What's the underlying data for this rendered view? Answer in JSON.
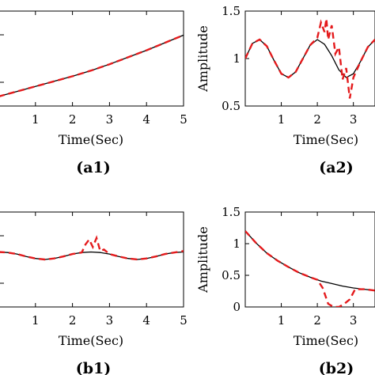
{
  "chart_data": [
    {
      "id": "a1",
      "type": "line",
      "panel_label": "(a1)",
      "xlabel": "Time(Sec)",
      "ylabel": "",
      "xlim": [
        0,
        5
      ],
      "ylim": [
        0,
        1.5
      ],
      "xticks": [
        1,
        2,
        3,
        4,
        5
      ],
      "yticks": [],
      "series": [
        {
          "style": "solid",
          "color": "#000000",
          "x": [
            0,
            0.5,
            1,
            1.5,
            2,
            2.5,
            3,
            3.5,
            4,
            4.5,
            5
          ],
          "y": [
            0.15,
            0.23,
            0.31,
            0.39,
            0.47,
            0.56,
            0.66,
            0.77,
            0.88,
            1.0,
            1.12
          ]
        },
        {
          "style": "dashed",
          "color": "#e41a1c",
          "x": [
            0,
            0.5,
            1,
            1.5,
            2,
            2.5,
            3,
            3.5,
            4,
            4.5,
            5
          ],
          "y": [
            0.15,
            0.23,
            0.31,
            0.39,
            0.47,
            0.56,
            0.66,
            0.77,
            0.88,
            1.0,
            1.12
          ]
        }
      ]
    },
    {
      "id": "a2",
      "type": "line",
      "panel_label": "(a2)",
      "xlabel": "Time(Sec)",
      "ylabel": "Amplitude",
      "xlim": [
        0,
        3.6
      ],
      "ylim": [
        0.5,
        1.5
      ],
      "xticks": [
        1,
        2,
        3
      ],
      "yticks": [
        0.5,
        1,
        1.5
      ],
      "series": [
        {
          "style": "solid",
          "color": "#000000",
          "x": [
            0,
            0.2,
            0.4,
            0.6,
            0.8,
            1.0,
            1.2,
            1.4,
            1.6,
            1.8,
            2.0,
            2.2,
            2.4,
            2.6,
            2.8,
            3.0,
            3.2,
            3.4,
            3.6
          ],
          "y": [
            1.0,
            1.16,
            1.2,
            1.13,
            0.98,
            0.84,
            0.8,
            0.86,
            1.0,
            1.14,
            1.2,
            1.15,
            1.03,
            0.88,
            0.8,
            0.84,
            0.97,
            1.12,
            1.2
          ]
        },
        {
          "style": "dashed",
          "color": "#e41a1c",
          "x": [
            0,
            0.2,
            0.4,
            0.6,
            0.8,
            1.0,
            1.2,
            1.4,
            1.6,
            1.8,
            2.0,
            2.1,
            2.2,
            2.25,
            2.3,
            2.4,
            2.5,
            2.6,
            2.7,
            2.8,
            2.9,
            3.0,
            3.2,
            3.4,
            3.6
          ],
          "y": [
            1.0,
            1.16,
            1.2,
            1.13,
            0.98,
            0.84,
            0.8,
            0.86,
            1.0,
            1.14,
            1.22,
            1.38,
            1.28,
            1.42,
            1.2,
            1.35,
            1.05,
            1.12,
            0.78,
            0.9,
            0.58,
            0.8,
            0.97,
            1.12,
            1.2
          ]
        }
      ]
    },
    {
      "id": "b1",
      "type": "line",
      "panel_label": "(b1)",
      "xlabel": "Time(Sec)",
      "ylabel": "",
      "xlim": [
        0,
        5
      ],
      "ylim": [
        -0.4,
        1.5
      ],
      "xticks": [
        1,
        2,
        3,
        4,
        5
      ],
      "yticks": [],
      "series": [
        {
          "style": "solid",
          "color": "#000000",
          "x": [
            0,
            0.25,
            0.5,
            0.75,
            1.0,
            1.25,
            1.5,
            1.75,
            2.0,
            2.25,
            2.5,
            2.75,
            3.0,
            3.25,
            3.5,
            3.75,
            4.0,
            4.25,
            4.5,
            4.75,
            5.0
          ],
          "y": [
            0.7,
            0.69,
            0.66,
            0.61,
            0.57,
            0.55,
            0.57,
            0.61,
            0.66,
            0.69,
            0.7,
            0.69,
            0.66,
            0.61,
            0.57,
            0.55,
            0.57,
            0.61,
            0.66,
            0.69,
            0.7
          ]
        },
        {
          "style": "dashed",
          "color": "#e41a1c",
          "x": [
            0,
            0.25,
            0.5,
            0.75,
            1.0,
            1.25,
            1.5,
            1.75,
            2.0,
            2.25,
            2.35,
            2.45,
            2.55,
            2.65,
            2.75,
            2.85,
            3.0,
            3.25,
            3.5,
            3.75,
            4.0,
            4.25,
            4.5,
            4.75,
            5.0
          ],
          "y": [
            0.7,
            0.69,
            0.66,
            0.61,
            0.57,
            0.55,
            0.57,
            0.61,
            0.66,
            0.69,
            0.85,
            0.95,
            0.8,
            0.98,
            0.72,
            0.75,
            0.66,
            0.61,
            0.57,
            0.55,
            0.57,
            0.61,
            0.66,
            0.69,
            0.72
          ]
        }
      ]
    },
    {
      "id": "b2",
      "type": "line",
      "panel_label": "(b2)",
      "xlabel": "Time(Sec)",
      "ylabel": "Amplitude",
      "xlim": [
        0,
        3.6
      ],
      "ylim": [
        0,
        1.5
      ],
      "xticks": [
        1,
        2,
        3
      ],
      "yticks": [
        0,
        0.5,
        1,
        1.5
      ],
      "series": [
        {
          "style": "solid",
          "color": "#000000",
          "x": [
            0,
            0.3,
            0.6,
            0.9,
            1.2,
            1.5,
            1.8,
            2.1,
            2.4,
            2.7,
            3.0,
            3.3,
            3.6
          ],
          "y": [
            1.2,
            1.01,
            0.85,
            0.73,
            0.63,
            0.54,
            0.47,
            0.41,
            0.37,
            0.33,
            0.3,
            0.28,
            0.26
          ]
        },
        {
          "style": "dashed",
          "color": "#e41a1c",
          "x": [
            0,
            0.3,
            0.6,
            0.9,
            1.2,
            1.5,
            1.8,
            2.0,
            2.15,
            2.3,
            2.45,
            2.6,
            2.75,
            2.9,
            3.05,
            3.3,
            3.6
          ],
          "y": [
            1.2,
            1.01,
            0.85,
            0.73,
            0.63,
            0.54,
            0.47,
            0.43,
            0.3,
            0.05,
            0.0,
            0.0,
            0.05,
            0.12,
            0.28,
            0.28,
            0.26
          ]
        }
      ]
    }
  ]
}
